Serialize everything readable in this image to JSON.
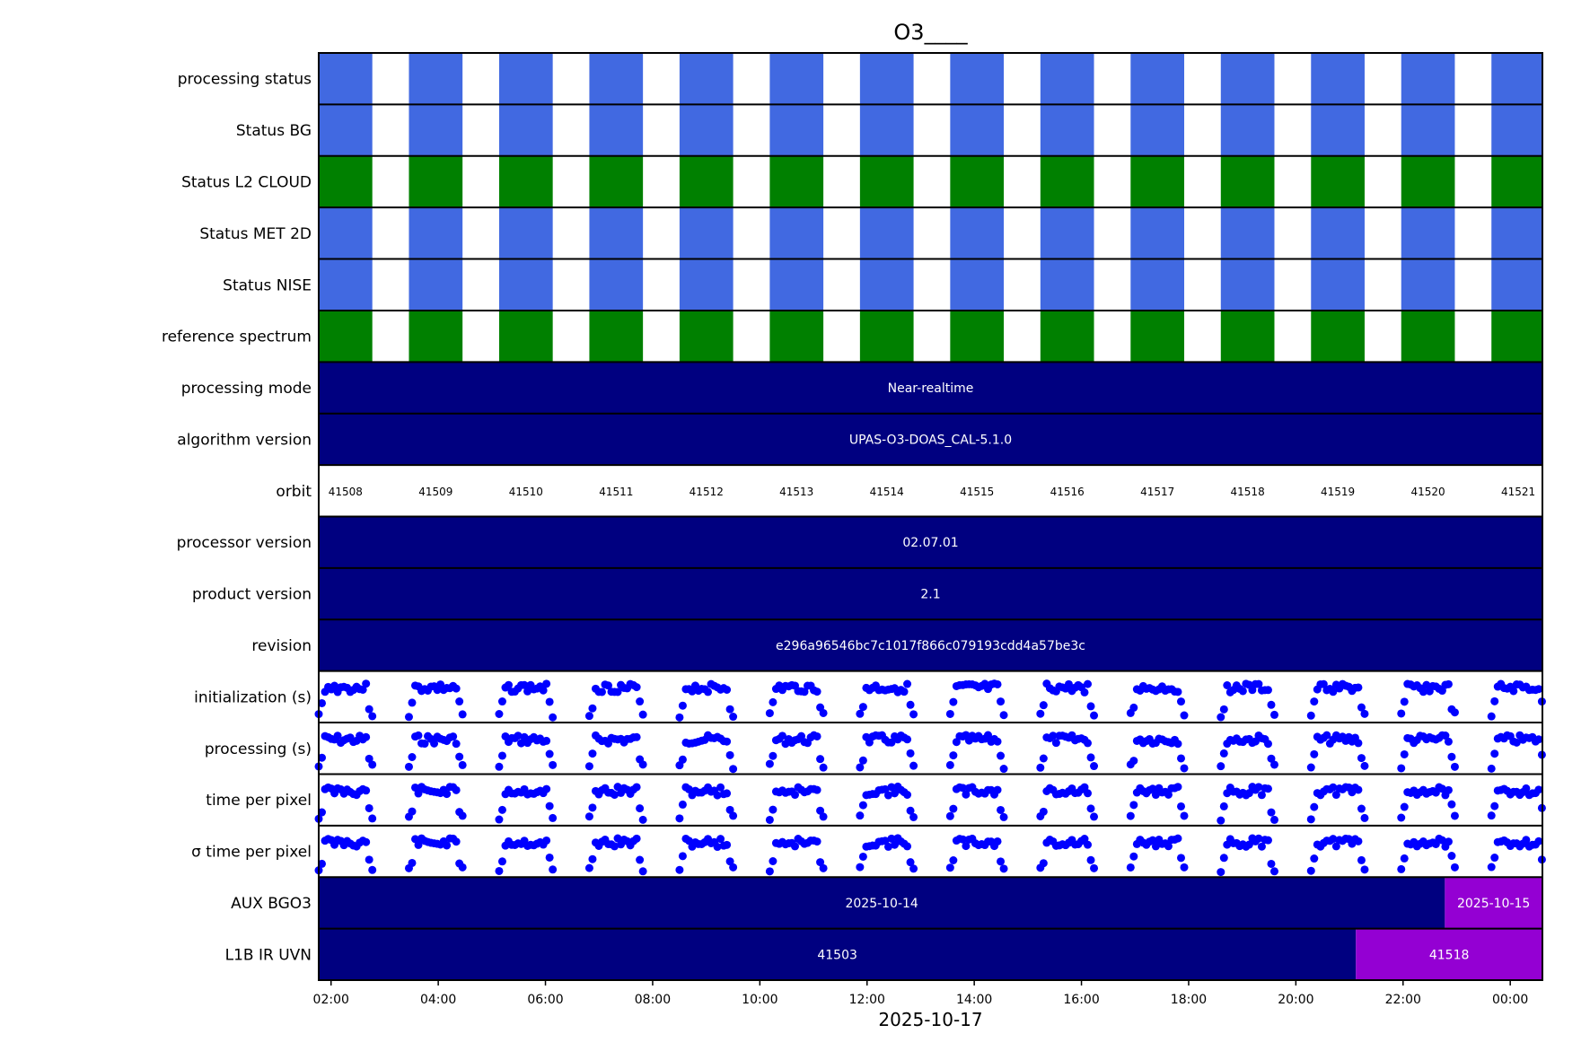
{
  "chart_data": {
    "type": "timeline",
    "title": "O3____",
    "xlabel": "2025-10-17",
    "x_range_hours": [
      1.77,
      24.6
    ],
    "x_ticks": [
      {
        "h": 2,
        "label": "02:00"
      },
      {
        "h": 4,
        "label": "04:00"
      },
      {
        "h": 6,
        "label": "06:00"
      },
      {
        "h": 8,
        "label": "08:00"
      },
      {
        "h": 10,
        "label": "10:00"
      },
      {
        "h": 12,
        "label": "12:00"
      },
      {
        "h": 14,
        "label": "14:00"
      },
      {
        "h": 16,
        "label": "16:00"
      },
      {
        "h": 18,
        "label": "18:00"
      },
      {
        "h": 20,
        "label": "20:00"
      },
      {
        "h": 22,
        "label": "22:00"
      },
      {
        "h": 24,
        "label": "00:00"
      }
    ],
    "orbit_period_hours": 1.683,
    "orbit_block_hours": 1.0,
    "orbits": [
      "41508",
      "41509",
      "41510",
      "41511",
      "41512",
      "41513",
      "41514",
      "41515",
      "41516",
      "41517",
      "41518",
      "41519",
      "41520",
      "41521"
    ],
    "colors": {
      "blue": "#4169e1",
      "green": "#008000",
      "navy": "#000080",
      "purple": "#9400d3",
      "dot": "#0000ff"
    },
    "rows": [
      {
        "label": "processing status",
        "kind": "blocks",
        "color": "blue"
      },
      {
        "label": "Status BG",
        "kind": "blocks",
        "color": "blue"
      },
      {
        "label": "Status L2  CLOUD",
        "kind": "blocks",
        "color": "green"
      },
      {
        "label": "Status MET 2D",
        "kind": "blocks",
        "color": "blue"
      },
      {
        "label": "Status NISE",
        "kind": "blocks",
        "color": "blue"
      },
      {
        "label": "reference spectrum",
        "kind": "blocks",
        "color": "green"
      },
      {
        "label": "processing mode",
        "kind": "bar",
        "segments": [
          {
            "from": 1.77,
            "to": 24.6,
            "color": "navy",
            "text": "Near-realtime"
          }
        ]
      },
      {
        "label": "algorithm version",
        "kind": "bar",
        "segments": [
          {
            "from": 1.77,
            "to": 24.6,
            "color": "navy",
            "text": "UPAS-O3-DOAS_CAL-5.1.0"
          }
        ]
      },
      {
        "label": "orbit",
        "kind": "orbit"
      },
      {
        "label": "processor version",
        "kind": "bar",
        "segments": [
          {
            "from": 1.77,
            "to": 24.6,
            "color": "navy",
            "text": "02.07.01"
          }
        ]
      },
      {
        "label": "product version",
        "kind": "bar",
        "segments": [
          {
            "from": 1.77,
            "to": 24.6,
            "color": "navy",
            "text": "2.1"
          }
        ]
      },
      {
        "label": "revision",
        "kind": "bar",
        "segments": [
          {
            "from": 1.77,
            "to": 24.6,
            "color": "navy",
            "text": "e296a96546bc7c1017f866c079193cdd4a57be3c"
          }
        ]
      },
      {
        "label": "initialization (s)",
        "kind": "scatter",
        "seed": 3
      },
      {
        "label": "processing (s)",
        "kind": "scatter",
        "seed": 7
      },
      {
        "label": "time per pixel",
        "kind": "scatter",
        "seed": 11
      },
      {
        "label": "σ time per pixel",
        "kind": "scatter",
        "seed": 11
      },
      {
        "label": "AUX BGO3",
        "kind": "bar",
        "segments": [
          {
            "from": 1.77,
            "to": 22.78,
            "color": "navy",
            "text": "2025-10-14"
          },
          {
            "from": 22.78,
            "to": 24.6,
            "color": "purple",
            "text": "2025-10-15"
          }
        ]
      },
      {
        "label": "L1B IR UVN",
        "kind": "bar",
        "segments": [
          {
            "from": 1.77,
            "to": 21.12,
            "color": "navy",
            "text": "41503"
          },
          {
            "from": 21.12,
            "to": 24.6,
            "color": "purple",
            "text": "41518"
          }
        ]
      }
    ]
  }
}
